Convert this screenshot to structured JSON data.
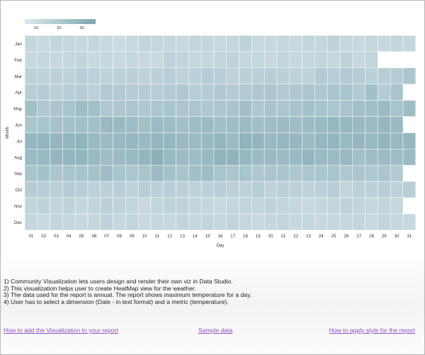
{
  "chart_data": {
    "type": "heatmap",
    "title": "",
    "xlabel": "Day",
    "ylabel": "Month",
    "x": [
      "01",
      "02",
      "03",
      "04",
      "05",
      "06",
      "07",
      "08",
      "09",
      "10",
      "11",
      "12",
      "13",
      "14",
      "15",
      "16",
      "17",
      "18",
      "19",
      "20",
      "21",
      "22",
      "23",
      "24",
      "25",
      "26",
      "27",
      "28",
      "29",
      "30",
      "31"
    ],
    "y": [
      "Jan",
      "Feb",
      "Mar",
      "Apr",
      "May",
      "Jun",
      "Jul",
      "Aug",
      "Sep",
      "Oct",
      "Nov",
      "Dec"
    ],
    "legend": {
      "ticks": [
        10,
        20,
        30
      ],
      "range": [
        5,
        36
      ],
      "placement": "top-left"
    },
    "color_scale": {
      "low": "#dce8ec",
      "high": "#7ea6b2"
    },
    "values": [
      [
        13,
        12,
        14,
        13,
        12,
        13,
        12,
        11,
        12,
        14,
        13,
        13,
        12,
        14,
        13,
        12,
        13,
        15,
        12,
        12,
        13,
        12,
        14,
        13,
        15,
        13,
        12,
        13,
        12,
        14,
        13
      ],
      [
        12,
        13,
        12,
        13,
        14,
        12,
        13,
        12,
        13,
        12,
        12,
        15,
        14,
        13,
        13,
        14,
        15,
        13,
        13,
        12,
        14,
        12,
        13,
        14,
        13,
        15,
        12,
        14,
        null,
        null,
        null
      ],
      [
        16,
        15,
        16,
        15,
        17,
        16,
        15,
        16,
        16,
        15,
        16,
        17,
        15,
        16,
        18,
        17,
        15,
        16,
        16,
        17,
        16,
        15,
        15,
        19,
        17,
        19,
        18,
        16,
        17,
        18,
        21
      ],
      [
        17,
        18,
        16,
        17,
        18,
        16,
        19,
        19,
        18,
        18,
        17,
        19,
        20,
        17,
        18,
        20,
        18,
        19,
        20,
        21,
        19,
        20,
        21,
        20,
        22,
        22,
        19,
        24,
        18,
        22,
        null
      ],
      [
        24,
        20,
        21,
        22,
        25,
        24,
        20,
        20,
        21,
        20,
        21,
        22,
        21,
        21,
        20,
        21,
        22,
        24,
        20,
        22,
        21,
        22,
        23,
        22,
        21,
        22,
        24,
        24,
        26,
        22,
        25
      ],
      [
        21,
        22,
        23,
        23,
        24,
        24,
        27,
        27,
        25,
        24,
        26,
        25,
        24,
        25,
        26,
        24,
        25,
        26,
        24,
        25,
        26,
        25,
        26,
        27,
        28,
        28,
        27,
        26,
        28,
        27,
        null
      ],
      [
        28,
        29,
        28,
        29,
        30,
        27,
        26,
        27,
        28,
        27,
        29,
        28,
        27,
        26,
        27,
        29,
        26,
        30,
        29,
        27,
        28,
        28,
        26,
        28,
        29,
        27,
        28,
        27,
        29,
        27,
        28
      ],
      [
        26,
        27,
        28,
        29,
        29,
        27,
        25,
        26,
        27,
        29,
        31,
        27,
        26,
        25,
        27,
        30,
        30,
        28,
        26,
        27,
        26,
        27,
        29,
        27,
        26,
        27,
        24,
        25,
        26,
        25,
        26
      ],
      [
        22,
        23,
        21,
        22,
        22,
        23,
        25,
        22,
        21,
        22,
        26,
        23,
        22,
        24,
        25,
        22,
        21,
        22,
        20,
        21,
        22,
        20,
        21,
        21,
        22,
        20,
        21,
        20,
        21,
        19,
        null
      ],
      [
        18,
        17,
        16,
        18,
        17,
        16,
        16,
        17,
        15,
        17,
        16,
        17,
        16,
        15,
        16,
        17,
        16,
        15,
        17,
        15,
        16,
        16,
        15,
        16,
        17,
        14,
        16,
        16,
        17,
        15,
        17
      ],
      [
        14,
        15,
        14,
        15,
        13,
        14,
        16,
        15,
        14,
        12,
        14,
        15,
        15,
        14,
        13,
        12,
        13,
        14,
        14,
        15,
        14,
        13,
        12,
        13,
        14,
        15,
        14,
        13,
        14,
        13,
        null
      ],
      [
        13,
        12,
        14,
        13,
        12,
        13,
        15,
        13,
        14,
        12,
        13,
        12,
        14,
        13,
        14,
        13,
        14,
        13,
        12,
        13,
        14,
        12,
        13,
        12,
        13,
        13,
        14,
        12,
        14,
        13,
        12
      ]
    ]
  },
  "notes": {
    "line1": "1) Community Visualization lets users design and render their own viz in Data Studio.",
    "line2": "2) This visualization helps user to create HeatMap view for the weather.",
    "line3": "3) The data used for the report is annual. The report shows maximum temperature for a day.",
    "line4": "4) User has to select a dimension (Date - in text format) and a metric (temperature)."
  },
  "links": {
    "add_viz": "How to add the Visualization to your report",
    "sample_data": "Sample data",
    "apply_style": "How to apply style for the report"
  },
  "colors": {
    "link": "#8e4fbf",
    "text": "#222222",
    "frame": "#b7b7b7"
  }
}
